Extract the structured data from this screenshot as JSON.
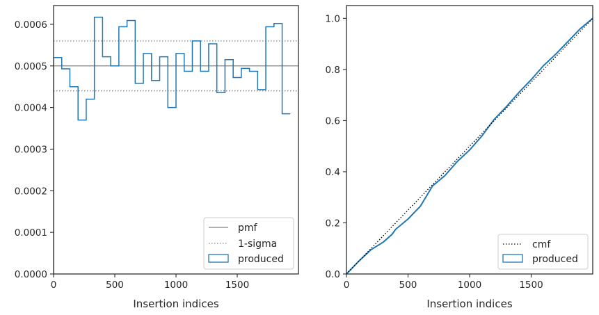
{
  "colors": {
    "produced": "#1f77b4",
    "pmf": "#808080",
    "sigma": "#808080",
    "cmf": "#000000",
    "axes": "#262626"
  },
  "chart_data": [
    {
      "type": "step-histogram",
      "xlabel": "Insertion indices",
      "ylabel": "",
      "xlim": [
        0,
        2000
      ],
      "ylim": [
        0,
        0.000645
      ],
      "x_ticks": [
        0,
        500,
        1000,
        1500
      ],
      "x_tick_labels": [
        "0",
        "500",
        "1000",
        "1500"
      ],
      "y_ticks": [
        0,
        0.0001,
        0.0002,
        0.0003,
        0.0004,
        0.0005,
        0.0006
      ],
      "y_tick_labels": [
        "0.0000",
        "0.0001",
        "0.0002",
        "0.0003",
        "0.0004",
        "0.0005",
        "0.0006"
      ],
      "bin_width": 66.67,
      "bin_edges_start": 0,
      "produced": [
        0.00052,
        0.000493,
        0.00045,
        0.00037,
        0.00042,
        0.000617,
        0.000522,
        0.0005,
        0.000594,
        0.000609,
        0.000458,
        0.00053,
        0.000465,
        0.000522,
        0.0004,
        0.00053,
        0.000487,
        0.00056,
        0.000487,
        0.000553,
        0.000436,
        0.000515,
        0.000472,
        0.000494,
        0.000487,
        0.000443,
        0.000594,
        0.000602,
        0.000385
      ],
      "pmf": 0.0005,
      "sigma_upper": 0.00056,
      "sigma_lower": 0.00044,
      "legend": [
        "pmf",
        "1-sigma",
        "produced"
      ],
      "legend_position": "lower-right"
    },
    {
      "type": "step-line",
      "xlabel": "Insertion indices",
      "ylabel": "",
      "xlim": [
        0,
        2000
      ],
      "ylim": [
        0,
        1.05
      ],
      "x_ticks": [
        0,
        500,
        1000,
        1500
      ],
      "x_tick_labels": [
        "0",
        "500",
        "1000",
        "1500"
      ],
      "y_ticks": [
        0,
        0.2,
        0.4,
        0.6,
        0.8,
        1.0
      ],
      "y_tick_labels": [
        "0.0",
        "0.2",
        "0.4",
        "0.6",
        "0.8",
        "1.0"
      ],
      "cmf": [
        [
          0,
          0
        ],
        [
          2000,
          1.0
        ]
      ],
      "produced": [
        [
          0,
          0
        ],
        [
          100,
          0.05
        ],
        [
          200,
          0.095
        ],
        [
          300,
          0.125
        ],
        [
          370,
          0.155
        ],
        [
          400,
          0.175
        ],
        [
          500,
          0.215
        ],
        [
          600,
          0.265
        ],
        [
          700,
          0.345
        ],
        [
          800,
          0.385
        ],
        [
          900,
          0.44
        ],
        [
          1000,
          0.485
        ],
        [
          1100,
          0.54
        ],
        [
          1200,
          0.605
        ],
        [
          1300,
          0.655
        ],
        [
          1400,
          0.71
        ],
        [
          1500,
          0.76
        ],
        [
          1600,
          0.815
        ],
        [
          1700,
          0.86
        ],
        [
          1800,
          0.91
        ],
        [
          1900,
          0.96
        ],
        [
          2000,
          1.0
        ]
      ],
      "legend": [
        "cmf",
        "produced"
      ],
      "legend_position": "lower-right"
    }
  ]
}
